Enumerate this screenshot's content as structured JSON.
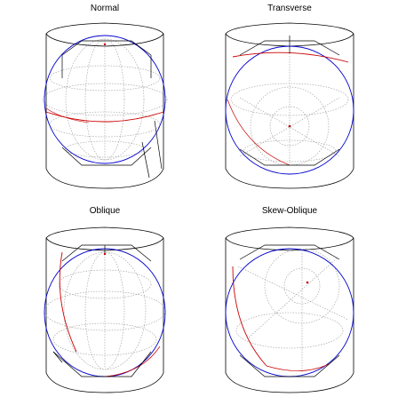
{
  "panels": [
    {
      "id": "normal",
      "title": "Normal"
    },
    {
      "id": "transverse",
      "title": "Transverse"
    },
    {
      "id": "oblique",
      "title": "Oblique"
    },
    {
      "id": "skew-oblique",
      "title": "Skew-Oblique"
    }
  ],
  "colors": {
    "outline": "#000000",
    "graticule": "#9a9a9a",
    "globe_edge": "#0000cc",
    "axis_line": "#cc0000",
    "background": "#ffffff"
  }
}
